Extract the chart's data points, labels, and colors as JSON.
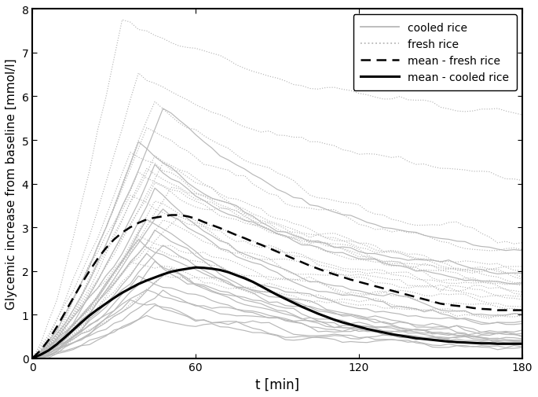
{
  "xlim": [
    0,
    180
  ],
  "ylim": [
    0,
    8
  ],
  "xlabel": "t [min]",
  "ylabel": "Glycemic increase from baseline [mmol/l]",
  "xticks": [
    0,
    60,
    120,
    180
  ],
  "yticks": [
    0,
    1,
    2,
    3,
    4,
    5,
    6,
    7,
    8
  ],
  "legend_labels": [
    "cooled rice",
    "fresh rice",
    "mean - fresh rice",
    "mean - cooled rice"
  ],
  "individual_color": "#b8b8b8",
  "mean_fresh_color": "#000000",
  "mean_cooled_color": "#000000",
  "figsize": [
    6.85,
    5.06
  ],
  "dpi": 100,
  "time_points": [
    0,
    3,
    6,
    9,
    12,
    15,
    18,
    21,
    24,
    27,
    30,
    33,
    36,
    39,
    42,
    45,
    48,
    51,
    54,
    57,
    60,
    63,
    66,
    69,
    72,
    75,
    78,
    81,
    84,
    87,
    90,
    93,
    96,
    99,
    102,
    105,
    108,
    111,
    114,
    117,
    120,
    123,
    126,
    129,
    132,
    135,
    138,
    141,
    144,
    147,
    150,
    153,
    156,
    159,
    162,
    165,
    168,
    171,
    174,
    177,
    180
  ],
  "mean_fresh": [
    0.0,
    0.18,
    0.42,
    0.72,
    1.05,
    1.38,
    1.7,
    2.0,
    2.28,
    2.52,
    2.72,
    2.88,
    3.0,
    3.1,
    3.18,
    3.22,
    3.25,
    3.28,
    3.28,
    3.25,
    3.2,
    3.12,
    3.05,
    2.98,
    2.9,
    2.82,
    2.75,
    2.67,
    2.6,
    2.52,
    2.44,
    2.36,
    2.28,
    2.2,
    2.12,
    2.05,
    1.98,
    1.92,
    1.86,
    1.8,
    1.75,
    1.7,
    1.65,
    1.6,
    1.55,
    1.5,
    1.45,
    1.4,
    1.35,
    1.3,
    1.25,
    1.22,
    1.2,
    1.18,
    1.15,
    1.13,
    1.12,
    1.1,
    1.1,
    1.1,
    1.1
  ],
  "mean_cooled": [
    0.0,
    0.08,
    0.18,
    0.32,
    0.48,
    0.65,
    0.82,
    0.98,
    1.12,
    1.25,
    1.38,
    1.5,
    1.6,
    1.7,
    1.78,
    1.85,
    1.92,
    1.98,
    2.02,
    2.05,
    2.08,
    2.07,
    2.05,
    2.02,
    1.97,
    1.9,
    1.83,
    1.75,
    1.65,
    1.55,
    1.45,
    1.36,
    1.27,
    1.18,
    1.1,
    1.02,
    0.95,
    0.88,
    0.82,
    0.77,
    0.72,
    0.67,
    0.63,
    0.59,
    0.55,
    0.52,
    0.49,
    0.46,
    0.44,
    0.42,
    0.4,
    0.38,
    0.37,
    0.36,
    0.35,
    0.34,
    0.34,
    0.33,
    0.33,
    0.33,
    0.33
  ],
  "noise_seed": 42
}
